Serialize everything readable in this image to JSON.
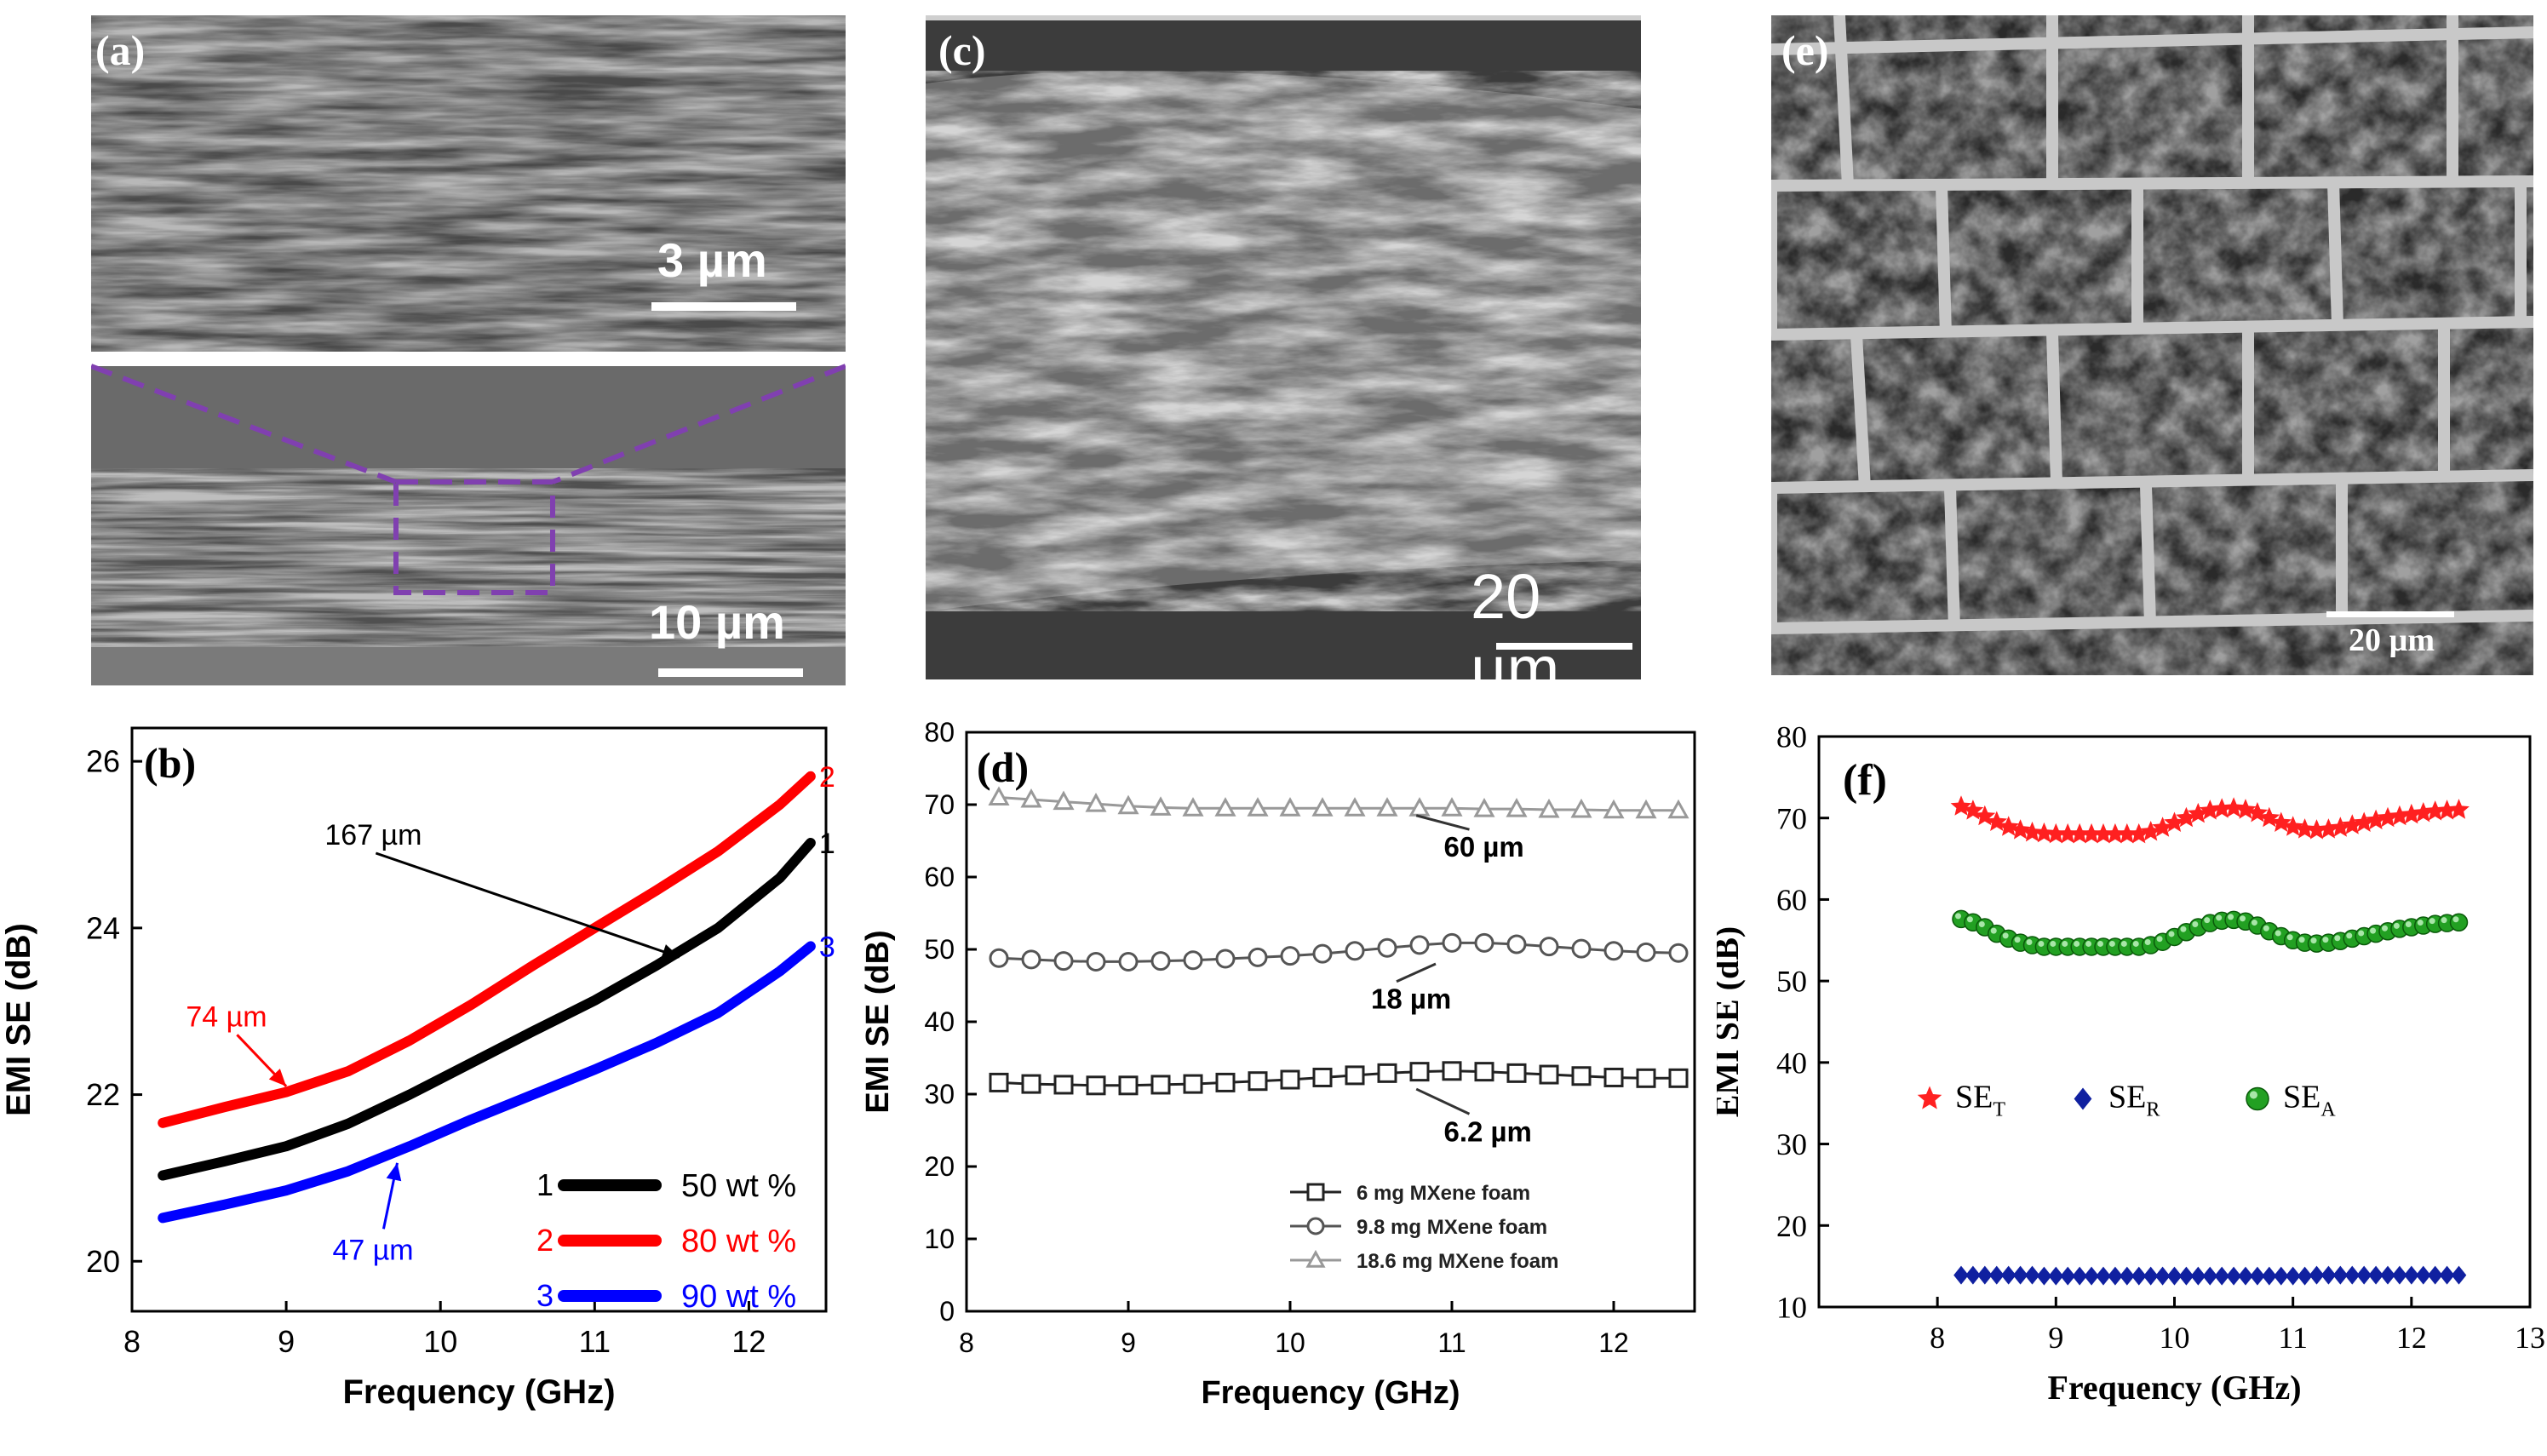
{
  "panels": {
    "a": {
      "label": "(a)",
      "scale_top": "3 µm",
      "scale_bottom": "10 µm"
    },
    "c": {
      "label": "(c)",
      "scale": "20 µm"
    },
    "e": {
      "label": "(e)",
      "scale": "20 µm"
    }
  },
  "chart_data": [
    {
      "panel": "(b)",
      "type": "line",
      "xlabel": "Frequency (GHz)",
      "ylabel": "EMI SE (dB)",
      "xlim": [
        8,
        12.5
      ],
      "ylim": [
        19.4,
        26.4
      ],
      "xticks": [
        8,
        9,
        10,
        11,
        12
      ],
      "yticks": [
        20,
        22,
        24,
        26
      ],
      "series": [
        {
          "name": "50 wt %",
          "id": "1",
          "color": "#000000",
          "thickness_label": "167 µm",
          "x": [
            8.2,
            8.6,
            9.0,
            9.4,
            9.8,
            10.2,
            10.6,
            11.0,
            11.4,
            11.8,
            12.2,
            12.4
          ],
          "y": [
            21.03,
            21.2,
            21.38,
            21.65,
            22.0,
            22.38,
            22.76,
            23.13,
            23.55,
            24.0,
            24.6,
            25.02
          ]
        },
        {
          "name": "80 wt %",
          "id": "2",
          "color": "#ff0000",
          "thickness_label": "74 µm",
          "x": [
            8.2,
            8.6,
            9.0,
            9.4,
            9.8,
            10.2,
            10.6,
            11.0,
            11.4,
            11.8,
            12.2,
            12.4
          ],
          "y": [
            21.66,
            21.85,
            22.03,
            22.28,
            22.65,
            23.08,
            23.55,
            24.0,
            24.45,
            24.92,
            25.48,
            25.82
          ]
        },
        {
          "name": "90 wt %",
          "id": "3",
          "color": "#0000ff",
          "thickness_label": "47 µm",
          "x": [
            8.2,
            8.6,
            9.0,
            9.4,
            9.8,
            10.2,
            10.6,
            11.0,
            11.4,
            11.8,
            12.2,
            12.4
          ],
          "y": [
            20.52,
            20.68,
            20.85,
            21.08,
            21.38,
            21.7,
            22.0,
            22.3,
            22.62,
            22.98,
            23.48,
            23.78
          ]
        }
      ],
      "legend_position": "bottom-right"
    },
    {
      "panel": "(d)",
      "type": "line",
      "xlabel": "Frequency (GHz)",
      "ylabel": "EMI SE (dB)",
      "xlim": [
        8,
        12.5
      ],
      "ylim": [
        0,
        80
      ],
      "xticks": [
        8,
        9,
        10,
        11,
        12
      ],
      "yticks": [
        0,
        10,
        20,
        30,
        40,
        50,
        60,
        70,
        80
      ],
      "series": [
        {
          "name": "6 mg MXene foam",
          "marker": "square",
          "color": "#222222",
          "thickness_label": "6.2 µm",
          "x": [
            8.2,
            8.4,
            8.6,
            8.8,
            9.0,
            9.2,
            9.4,
            9.6,
            9.8,
            10.0,
            10.2,
            10.4,
            10.6,
            10.8,
            11.0,
            11.2,
            11.4,
            11.6,
            11.8,
            12.0,
            12.2,
            12.4
          ],
          "y": [
            31.6,
            31.4,
            31.3,
            31.2,
            31.2,
            31.3,
            31.4,
            31.6,
            31.8,
            32.0,
            32.3,
            32.6,
            32.9,
            33.1,
            33.2,
            33.1,
            32.9,
            32.7,
            32.5,
            32.3,
            32.2,
            32.2
          ]
        },
        {
          "name": "9.8 mg MXene foam",
          "marker": "circle",
          "color": "#555555",
          "thickness_label": "18 µm",
          "x": [
            8.2,
            8.4,
            8.6,
            8.8,
            9.0,
            9.2,
            9.4,
            9.6,
            9.8,
            10.0,
            10.2,
            10.4,
            10.6,
            10.8,
            11.0,
            11.2,
            11.4,
            11.6,
            11.8,
            12.0,
            12.2,
            12.4
          ],
          "y": [
            48.8,
            48.6,
            48.4,
            48.3,
            48.3,
            48.4,
            48.5,
            48.7,
            48.9,
            49.1,
            49.4,
            49.8,
            50.2,
            50.6,
            50.9,
            50.9,
            50.7,
            50.4,
            50.1,
            49.8,
            49.6,
            49.5
          ]
        },
        {
          "name": "18.6 mg MXene foam",
          "marker": "triangle",
          "color": "#999999",
          "thickness_label": "60 µm",
          "x": [
            8.2,
            8.4,
            8.6,
            8.8,
            9.0,
            9.2,
            9.4,
            9.6,
            9.8,
            10.0,
            10.2,
            10.4,
            10.6,
            10.8,
            11.0,
            11.2,
            11.4,
            11.6,
            11.8,
            12.0,
            12.2,
            12.4
          ],
          "y": [
            71.0,
            70.7,
            70.4,
            70.1,
            69.8,
            69.6,
            69.5,
            69.5,
            69.5,
            69.5,
            69.5,
            69.5,
            69.5,
            69.5,
            69.5,
            69.4,
            69.4,
            69.3,
            69.3,
            69.2,
            69.2,
            69.2
          ]
        }
      ],
      "legend_position": "bottom-right"
    },
    {
      "panel": "(f)",
      "type": "scatter",
      "xlabel": "Frequency (GHz)",
      "ylabel": "EMI SE (dB)",
      "xlim": [
        7,
        13
      ],
      "ylim": [
        10,
        80
      ],
      "xticks": [
        8,
        9,
        10,
        11,
        12,
        13
      ],
      "yticks": [
        10,
        20,
        30,
        40,
        50,
        60,
        70,
        80
      ],
      "series": [
        {
          "name": "SE",
          "sub": "T",
          "marker": "star",
          "color": "#ff2020",
          "x": [
            8.2,
            8.3,
            8.4,
            8.5,
            8.6,
            8.7,
            8.8,
            8.9,
            9.0,
            9.1,
            9.2,
            9.3,
            9.4,
            9.5,
            9.6,
            9.7,
            9.8,
            9.9,
            10.0,
            10.1,
            10.2,
            10.3,
            10.4,
            10.5,
            10.6,
            10.7,
            10.8,
            10.9,
            11.0,
            11.1,
            11.2,
            11.3,
            11.4,
            11.5,
            11.6,
            11.7,
            11.8,
            11.9,
            12.0,
            12.1,
            12.2,
            12.3,
            12.4
          ],
          "y": [
            71.4,
            70.9,
            70.2,
            69.5,
            68.9,
            68.5,
            68.2,
            68.1,
            68.0,
            68.0,
            68.0,
            68.0,
            68.0,
            68.0,
            68.0,
            68.0,
            68.3,
            68.8,
            69.4,
            70.0,
            70.5,
            70.9,
            71.1,
            71.2,
            71.0,
            70.6,
            70.0,
            69.4,
            68.9,
            68.6,
            68.5,
            68.6,
            68.8,
            69.1,
            69.4,
            69.7,
            70.0,
            70.2,
            70.4,
            70.6,
            70.8,
            70.9,
            71.0
          ]
        },
        {
          "name": "SE",
          "sub": "R",
          "marker": "diamond",
          "color": "#1020a0",
          "x": [
            8.2,
            8.3,
            8.4,
            8.5,
            8.6,
            8.7,
            8.8,
            8.9,
            9.0,
            9.1,
            9.2,
            9.3,
            9.4,
            9.5,
            9.6,
            9.7,
            9.8,
            9.9,
            10.0,
            10.1,
            10.2,
            10.3,
            10.4,
            10.5,
            10.6,
            10.7,
            10.8,
            10.9,
            11.0,
            11.1,
            11.2,
            11.3,
            11.4,
            11.5,
            11.6,
            11.7,
            11.8,
            11.9,
            12.0,
            12.1,
            12.2,
            12.3,
            12.4
          ],
          "y": [
            13.9,
            13.9,
            13.9,
            13.9,
            13.9,
            13.9,
            13.9,
            13.8,
            13.8,
            13.8,
            13.8,
            13.8,
            13.8,
            13.8,
            13.8,
            13.8,
            13.8,
            13.8,
            13.8,
            13.8,
            13.8,
            13.8,
            13.8,
            13.8,
            13.8,
            13.8,
            13.8,
            13.8,
            13.8,
            13.8,
            13.9,
            13.9,
            13.9,
            13.9,
            13.9,
            13.9,
            13.9,
            13.9,
            13.9,
            13.9,
            13.9,
            13.9,
            13.9
          ]
        },
        {
          "name": "SE",
          "sub": "A",
          "marker": "sphere",
          "color": "#22a022",
          "x": [
            8.2,
            8.3,
            8.4,
            8.5,
            8.6,
            8.7,
            8.8,
            8.9,
            9.0,
            9.1,
            9.2,
            9.3,
            9.4,
            9.5,
            9.6,
            9.7,
            9.8,
            9.9,
            10.0,
            10.1,
            10.2,
            10.3,
            10.4,
            10.5,
            10.6,
            10.7,
            10.8,
            10.9,
            11.0,
            11.1,
            11.2,
            11.3,
            11.4,
            11.5,
            11.6,
            11.7,
            11.8,
            11.9,
            12.0,
            12.1,
            12.2,
            12.3,
            12.4
          ],
          "y": [
            57.6,
            57.2,
            56.6,
            55.8,
            55.2,
            54.7,
            54.4,
            54.2,
            54.2,
            54.2,
            54.2,
            54.2,
            54.2,
            54.2,
            54.2,
            54.2,
            54.4,
            54.8,
            55.4,
            56.0,
            56.6,
            57.1,
            57.4,
            57.5,
            57.3,
            56.8,
            56.1,
            55.5,
            55.0,
            54.7,
            54.6,
            54.7,
            54.9,
            55.2,
            55.5,
            55.8,
            56.1,
            56.4,
            56.6,
            56.8,
            57.0,
            57.1,
            57.2
          ]
        }
      ],
      "legend_position": "center"
    }
  ]
}
